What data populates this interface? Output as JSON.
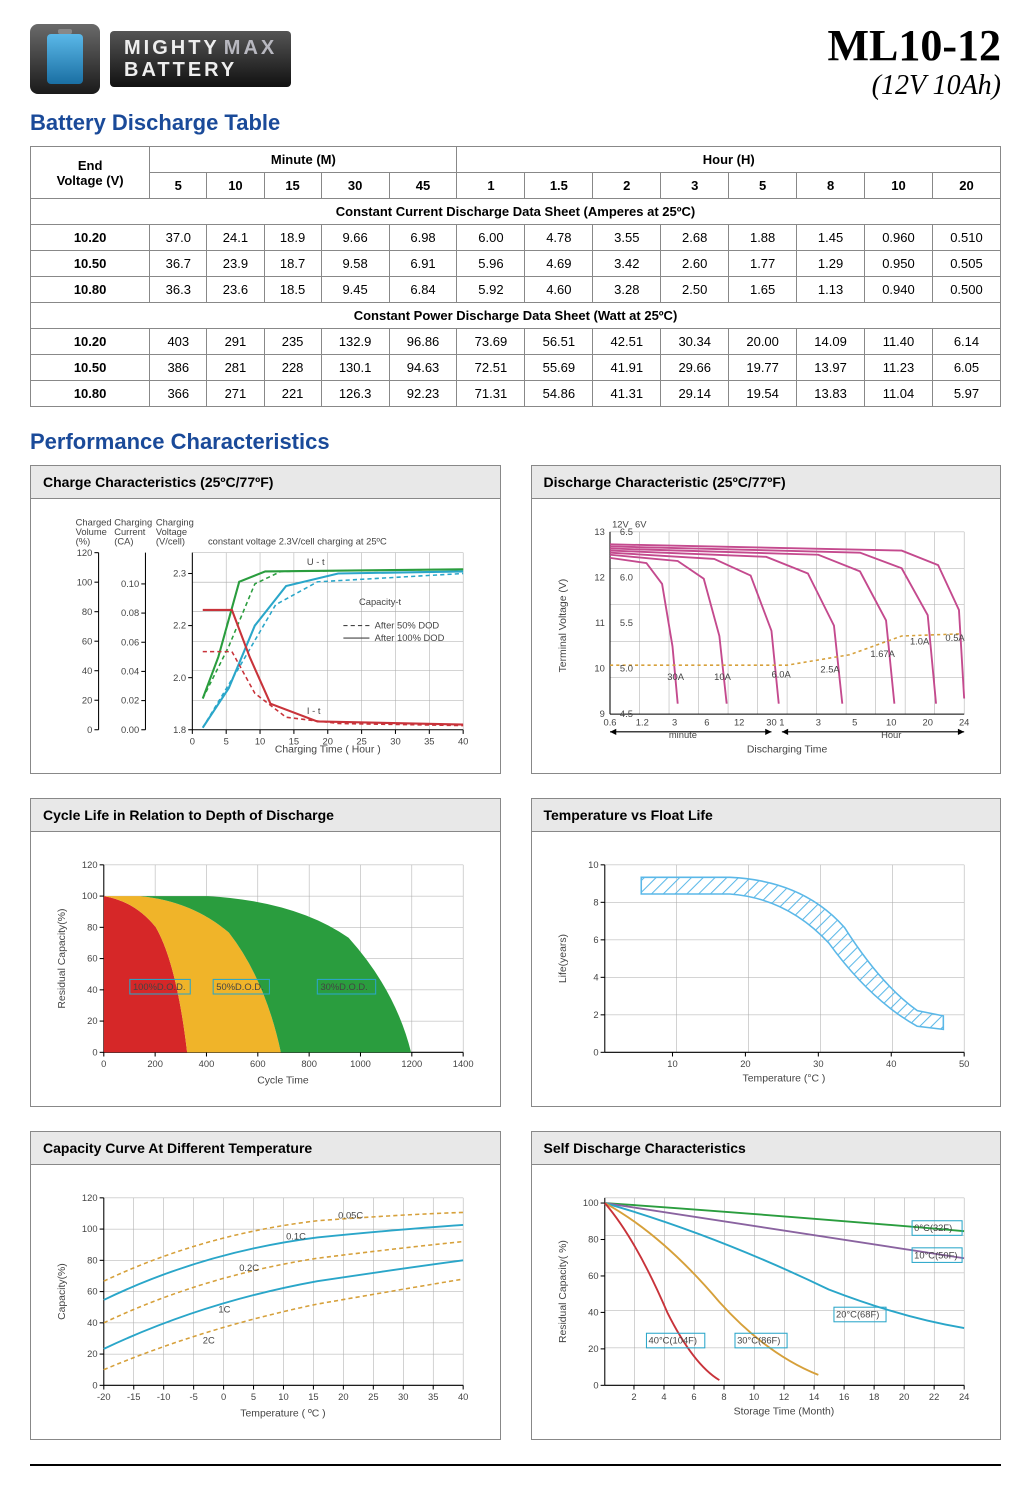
{
  "brand": {
    "line1a": "MIGHTY",
    "line1b": "MAX",
    "line2": "BATTERY"
  },
  "product": {
    "model": "ML10-12",
    "spec": "(12V 10Ah)"
  },
  "titles": {
    "table": "Battery Discharge Table",
    "perf": "Performance Characteristics"
  },
  "table": {
    "col_voltage": "End\nVoltage (V)",
    "group_min": "Minute (M)",
    "group_hr": "Hour (H)",
    "min_cols": [
      "5",
      "10",
      "15",
      "30",
      "45"
    ],
    "hr_cols": [
      "1",
      "1.5",
      "2",
      "3",
      "5",
      "8",
      "10",
      "20"
    ],
    "section1": "Constant Current Discharge Data Sheet (Amperes at 25ºC)",
    "rows1": [
      {
        "v": "10.20",
        "c": [
          "37.0",
          "24.1",
          "18.9",
          "9.66",
          "6.98",
          "6.00",
          "4.78",
          "3.55",
          "2.68",
          "1.88",
          "1.45",
          "0.960",
          "0.510"
        ]
      },
      {
        "v": "10.50",
        "c": [
          "36.7",
          "23.9",
          "18.7",
          "9.58",
          "6.91",
          "5.96",
          "4.69",
          "3.42",
          "2.60",
          "1.77",
          "1.29",
          "0.950",
          "0.505"
        ]
      },
      {
        "v": "10.80",
        "c": [
          "36.3",
          "23.6",
          "18.5",
          "9.45",
          "6.84",
          "5.92",
          "4.60",
          "3.28",
          "2.50",
          "1.65",
          "1.13",
          "0.940",
          "0.500"
        ]
      }
    ],
    "section2": "Constant Power Discharge Data Sheet (Watt at 25ºC)",
    "rows2": [
      {
        "v": "10.20",
        "c": [
          "403",
          "291",
          "235",
          "132.9",
          "96.86",
          "73.69",
          "56.51",
          "42.51",
          "30.34",
          "20.00",
          "14.09",
          "11.40",
          "6.14"
        ]
      },
      {
        "v": "10.50",
        "c": [
          "386",
          "281",
          "228",
          "130.1",
          "94.63",
          "72.51",
          "55.69",
          "41.91",
          "29.66",
          "19.77",
          "13.97",
          "11.23",
          "6.05"
        ]
      },
      {
        "v": "10.80",
        "c": [
          "366",
          "271",
          "221",
          "126.3",
          "92.23",
          "71.31",
          "54.86",
          "41.31",
          "29.14",
          "19.54",
          "13.83",
          "11.04",
          "5.97"
        ]
      }
    ]
  },
  "charts": {
    "charge": {
      "title": "Charge Characteristics (25ºC/77ºF)",
      "ylabels_left": [
        "Charged\nVolume\n(%)",
        "Charging\nCurrent\n(CA)",
        "Charging\nVoltage\n(V/cell)"
      ],
      "note": "constant voltage 2.3V/cell charging at 25ºC",
      "legend": [
        "Capacity-t",
        "After 50% DOD",
        "After 100% DOD",
        "I - t"
      ],
      "xlabel": "Charging Time ( Hour )",
      "xticks": [
        "0",
        "5",
        "10",
        "15",
        "20",
        "25",
        "30",
        "35",
        "40"
      ],
      "yticks": [
        "0",
        "20",
        "40",
        "60",
        "80",
        "100",
        "120"
      ],
      "y2ticks": [
        "0.00",
        "0.02",
        "0.04",
        "0.06",
        "0.08",
        "0.10"
      ],
      "y3ticks": [
        "1.8",
        "2.0",
        "2.2",
        "2.3"
      ],
      "colors": {
        "cap": "#2aa6c9",
        "volt": "#2a9d3e",
        "curr": "#c8333a",
        "grid": "#bfbfbf"
      }
    },
    "discharge": {
      "title": "Discharge Characteristic (25ºC/77ºF)",
      "ylabel": "Terminal Voltage (V)",
      "xlabel": "Discharging Time",
      "y_left": [
        "12V",
        "13",
        "12",
        "11",
        "10",
        "9"
      ],
      "y_right": [
        "6V",
        "6.5",
        "6.0",
        "5.5",
        "5.0",
        "4.5"
      ],
      "x_min": [
        "0.6",
        "1.2",
        "3",
        "6",
        "12",
        "30"
      ],
      "x_hr": [
        "1",
        "3",
        "5",
        "10",
        "20",
        "24"
      ],
      "xseg": [
        "minute",
        "Hour"
      ],
      "curve_labels": [
        "30A",
        "10A",
        "6.0A",
        "2.5A",
        "1.67A",
        "1.0A",
        "0.5A"
      ],
      "colors": {
        "curve": "#c44a8e",
        "dash": "#d6a03a",
        "grid": "#bfbfbf"
      }
    },
    "cycle": {
      "title": "Cycle Life in Relation to Depth of Discharge",
      "ylabel": "Residual Capacity(%)",
      "xlabel": "Cycle Time",
      "xticks": [
        "0",
        "200",
        "400",
        "600",
        "800",
        "1000",
        "1200",
        "1400"
      ],
      "yticks": [
        "0",
        "20",
        "40",
        "60",
        "80",
        "100",
        "120"
      ],
      "labels": [
        "100%D.O.D.",
        "50%D.O.D.",
        "30%D.O.D."
      ],
      "colors": {
        "c100": "#d62728",
        "c50": "#f0b429",
        "c30": "#2a9d3e",
        "grid": "#bfbfbf",
        "lbl": "#2aa6c9"
      }
    },
    "float": {
      "title": "Temperature vs Float Life",
      "ylabel": "Life(years)",
      "xlabel": "Temperature (°C )",
      "xticks": [
        "10",
        "20",
        "30",
        "40",
        "50"
      ],
      "yticks": [
        "0",
        "2",
        "4",
        "6",
        "8",
        "10"
      ],
      "colors": {
        "band": "#5bb8e8",
        "grid": "#bfbfbf"
      }
    },
    "capacity": {
      "title": "Capacity Curve At Different Temperature",
      "ylabel": "Capacity(%)",
      "xlabel": "Temperature ( ºC )",
      "xticks": [
        "-20",
        "-15",
        "-10",
        "-5",
        "0",
        "5",
        "10",
        "15",
        "20",
        "25",
        "30",
        "35",
        "40"
      ],
      "yticks": [
        "0",
        "20",
        "40",
        "60",
        "80",
        "100",
        "120"
      ],
      "curve_labels": [
        "0.05C",
        "0.1C",
        "0.2C",
        "1C",
        "2C"
      ],
      "colors": {
        "solid": "#2aa6c9",
        "dash": "#d6a03a",
        "grid": "#bfbfbf"
      }
    },
    "selfd": {
      "title": "Self Discharge Characteristics",
      "ylabel": "Residual Capacity( %)",
      "xlabel": "Storage Time (Month)",
      "xticks": [
        "2",
        "4",
        "6",
        "8",
        "10",
        "12",
        "14",
        "16",
        "18",
        "20",
        "22",
        "24"
      ],
      "yticks": [
        "0",
        "20",
        "40",
        "60",
        "80",
        "100"
      ],
      "labels": [
        "0°C(32F)",
        "10°C(50F)",
        "20°C(68F)",
        "30°C(86F)",
        "40°C(104F)"
      ],
      "colors": {
        "c0": "#2a9d3e",
        "c10": "#8a63a0",
        "c20": "#2aa6c9",
        "c30": "#d6a03a",
        "c40": "#c8333a",
        "grid": "#bfbfbf",
        "box": "#2aa6c9"
      }
    }
  }
}
